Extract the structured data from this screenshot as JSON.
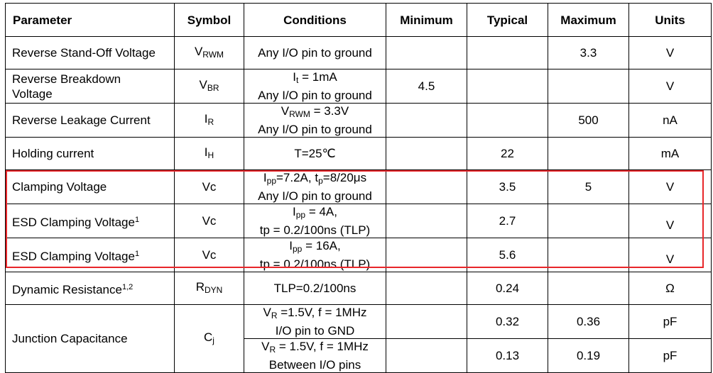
{
  "headers": {
    "parameter": "Parameter",
    "symbol": "Symbol",
    "conditions": "Conditions",
    "minimum": "Minimum",
    "typical": "Typical",
    "maximum": "Maximum",
    "units": "Units"
  },
  "rows": [
    {
      "parameter": "Reverse Stand-Off Voltage",
      "symbol": {
        "main": "V",
        "sub": "RWM"
      },
      "conditions": [
        "Any I/O pin to ground"
      ],
      "min": "",
      "typ": "",
      "max": "3.3",
      "units": "V"
    },
    {
      "parameter_lines": [
        "Reverse Breakdown",
        "Voltage"
      ],
      "symbol": {
        "main": "V",
        "sub": "BR"
      },
      "conditions_parts": {
        "l1_main": "I",
        "l1_sub": "t",
        "l1_rest": " = 1mA",
        "l2": "Any I/O pin to ground"
      },
      "min": "4.5",
      "typ": "",
      "max": "",
      "units": "V"
    },
    {
      "parameter": "Reverse Leakage Current",
      "symbol": {
        "main": "I",
        "sub": "R"
      },
      "conditions_parts": {
        "l1_main": "V",
        "l1_sub": "RWM",
        "l1_rest": " = 3.3V",
        "l2": "Any I/O pin to ground"
      },
      "min": "",
      "typ": "",
      "max": "500",
      "units": "nA"
    },
    {
      "parameter": "Holding current",
      "symbol": {
        "main": "I",
        "sub": "H"
      },
      "conditions": [
        "T=25℃"
      ],
      "min": "",
      "typ": "22",
      "max": "",
      "units": "mA"
    },
    {
      "parameter": "Clamping Voltage",
      "symbol": {
        "main": "Vc"
      },
      "conditions_parts": {
        "a": "I",
        "a_sub": "pp",
        "b": "=7.2A, t",
        "b_sub": "p",
        "c": "=8/20μs",
        "l2": "Any I/O pin to ground"
      },
      "min": "",
      "typ": "3.5",
      "max": "5",
      "units": "V"
    },
    {
      "parameter": "ESD Clamping Voltage",
      "parameter_sup": "1",
      "symbol": {
        "main": "Vc"
      },
      "conditions_parts": {
        "l1_main": "I",
        "l1_sub": "pp",
        "l1_rest": " = 4A,",
        "l2": "tp = 0.2/100ns (TLP)"
      },
      "min": "",
      "typ": "2.7",
      "max": "",
      "units": "V"
    },
    {
      "parameter": "ESD Clamping Voltage",
      "parameter_sup": "1",
      "symbol": {
        "main": "Vc"
      },
      "conditions_parts": {
        "l1_main": "I",
        "l1_sub": "pp",
        "l1_rest": " = 16A,",
        "l2": "tp = 0.2/100ns (TLP)"
      },
      "min": "",
      "typ": "5.6",
      "max": "",
      "units": "V"
    },
    {
      "parameter": "Dynamic Resistance",
      "parameter_sup": "1,2",
      "symbol": {
        "main": "R",
        "sub": "DYN"
      },
      "conditions": [
        "TLP=0.2/100ns"
      ],
      "min": "",
      "typ": "0.24",
      "max": "",
      "units": "Ω"
    }
  ],
  "capacitance": {
    "parameter": "Junction Capacitance",
    "symbol": {
      "main": "C",
      "sub": "j"
    },
    "sub_rows": [
      {
        "cond_main": "V",
        "cond_sub": "R",
        "cond_rest": " =1.5V, f = 1MHz",
        "l2": "I/O pin to GND",
        "min": "",
        "typ": "0.32",
        "max": "0.36",
        "units": "pF"
      },
      {
        "cond_main": "V",
        "cond_sub": "R",
        "cond_rest": " = 1.5V, f = 1MHz",
        "l2": "Between I/O pins",
        "min": "",
        "typ": "0.13",
        "max": "0.19",
        "units": "pF"
      }
    ]
  },
  "highlight_color": "#e8262a"
}
